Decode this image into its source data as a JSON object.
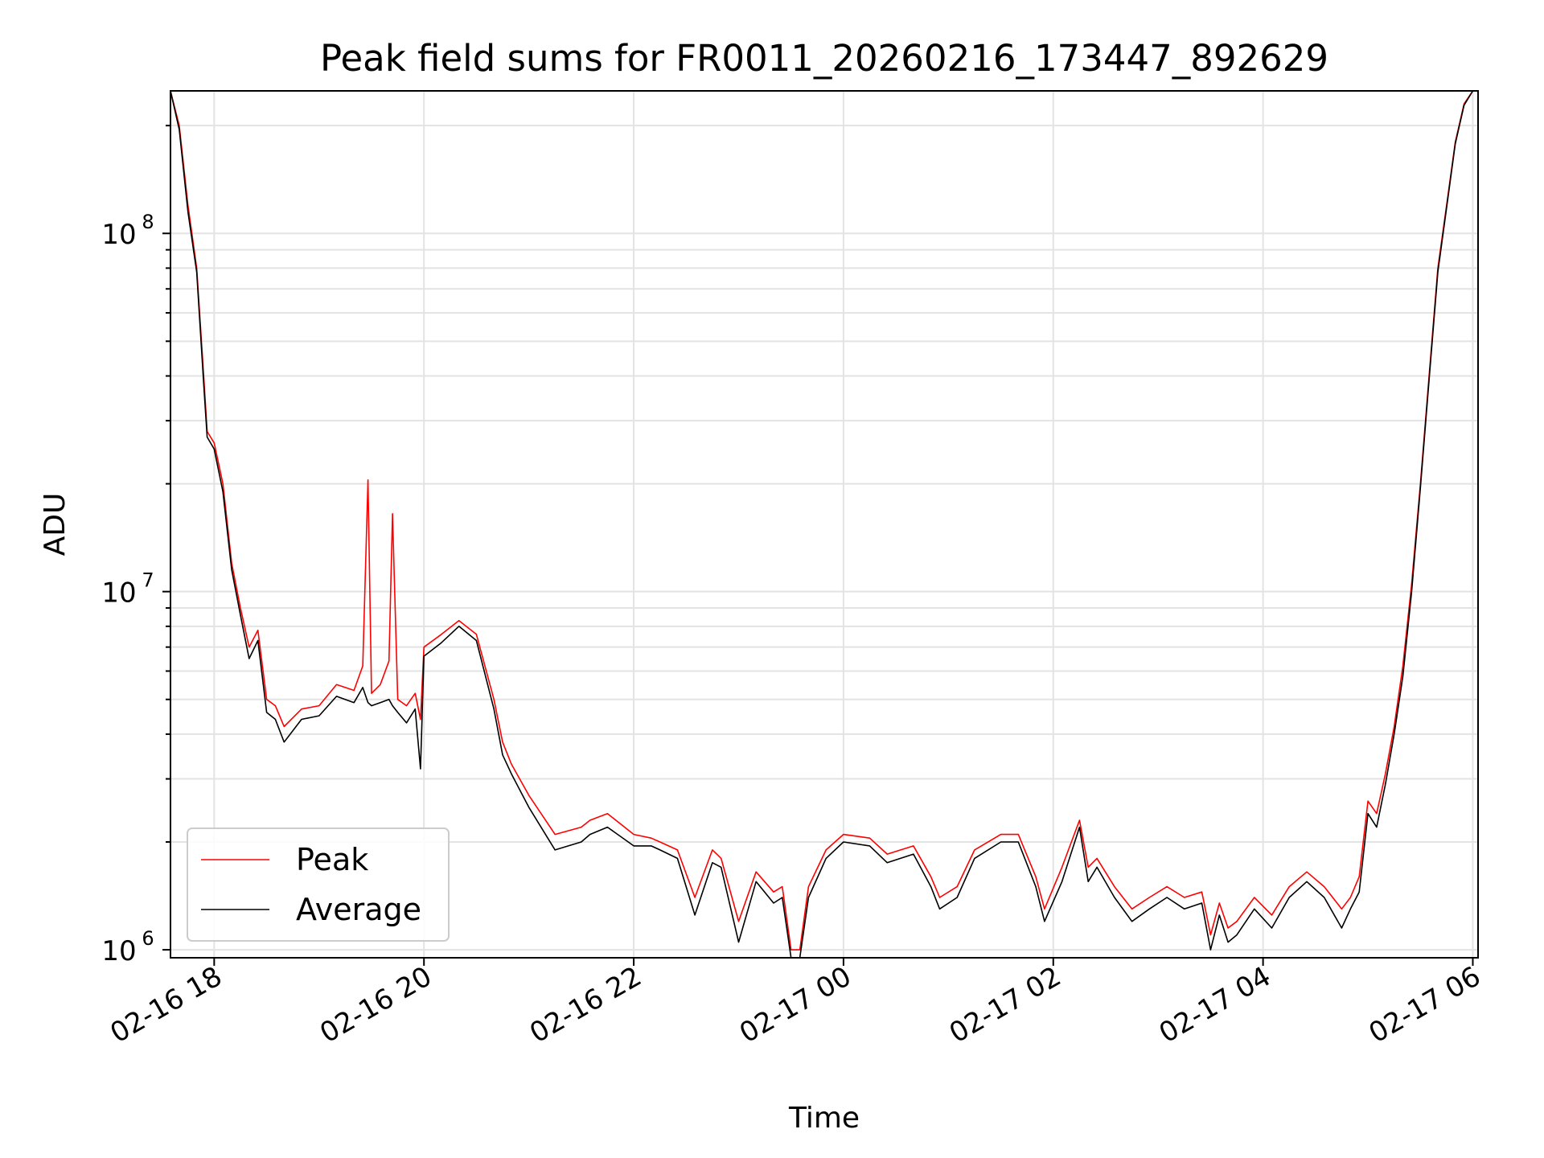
{
  "chart_data": {
    "type": "line",
    "title": "Peak field sums for FR0011_20260216_173447_892629",
    "xlabel": "Time",
    "ylabel": "ADU",
    "yscale": "log",
    "ylim": [
      950000,
      250000000
    ],
    "xlim": [
      "2026-02-16 17:35",
      "2026-02-17 06:03"
    ],
    "grid": "on (major and minor)",
    "legend_location": "lower-left",
    "x_ticks": [
      "2026-02-16 18:00",
      "2026-02-16 20:00",
      "2026-02-16 22:00",
      "2026-02-17 00:00",
      "2026-02-17 02:00",
      "2026-02-17 04:00",
      "2026-02-17 06:00"
    ],
    "x_tick_labels": [
      "02-16 18",
      "02-16 20",
      "02-16 22",
      "02-17 00",
      "02-17 02",
      "02-17 04",
      "02-17 06"
    ],
    "y_tick_labels": [
      {
        "base": "10",
        "exp": "6",
        "value": 1000000
      },
      {
        "base": "10",
        "exp": "7",
        "value": 10000000
      },
      {
        "base": "10",
        "exp": "8",
        "value": 100000000
      }
    ],
    "series": [
      {
        "name": "Peak",
        "color": "#ff0000",
        "x": [
          "2026-02-16 17:35",
          "2026-02-16 17:40",
          "2026-02-16 17:45",
          "2026-02-16 17:50",
          "2026-02-16 17:54",
          "2026-02-16 17:56",
          "2026-02-16 18:00",
          "2026-02-16 18:05",
          "2026-02-16 18:10",
          "2026-02-16 18:15",
          "2026-02-16 18:20",
          "2026-02-16 18:25",
          "2026-02-16 18:30",
          "2026-02-16 18:35",
          "2026-02-16 18:40",
          "2026-02-16 18:50",
          "2026-02-16 19:00",
          "2026-02-16 19:10",
          "2026-02-16 19:20",
          "2026-02-16 19:25",
          "2026-02-16 19:28",
          "2026-02-16 19:30",
          "2026-02-16 19:35",
          "2026-02-16 19:40",
          "2026-02-16 19:42",
          "2026-02-16 19:45",
          "2026-02-16 19:50",
          "2026-02-16 19:55",
          "2026-02-16 19:58",
          "2026-02-16 20:00",
          "2026-02-16 20:10",
          "2026-02-16 20:20",
          "2026-02-16 20:30",
          "2026-02-16 20:40",
          "2026-02-16 20:45",
          "2026-02-16 20:50",
          "2026-02-16 21:00",
          "2026-02-16 21:15",
          "2026-02-16 21:30",
          "2026-02-16 21:35",
          "2026-02-16 21:45",
          "2026-02-16 22:00",
          "2026-02-16 22:10",
          "2026-02-16 22:15",
          "2026-02-16 22:25",
          "2026-02-16 22:35",
          "2026-02-16 22:45",
          "2026-02-16 22:50",
          "2026-02-16 23:00",
          "2026-02-16 23:10",
          "2026-02-16 23:20",
          "2026-02-16 23:25",
          "2026-02-16 23:30",
          "2026-02-16 23:35",
          "2026-02-16 23:40",
          "2026-02-16 23:50",
          "2026-02-17 00:00",
          "2026-02-17 00:15",
          "2026-02-17 00:25",
          "2026-02-17 00:40",
          "2026-02-17 00:50",
          "2026-02-17 00:55",
          "2026-02-17 01:05",
          "2026-02-17 01:15",
          "2026-02-17 01:30",
          "2026-02-17 01:40",
          "2026-02-17 01:50",
          "2026-02-17 01:55",
          "2026-02-17 02:05",
          "2026-02-17 02:15",
          "2026-02-17 02:20",
          "2026-02-17 02:25",
          "2026-02-17 02:35",
          "2026-02-17 02:45",
          "2026-02-17 02:55",
          "2026-02-17 03:05",
          "2026-02-17 03:15",
          "2026-02-17 03:25",
          "2026-02-17 03:30",
          "2026-02-17 03:35",
          "2026-02-17 03:40",
          "2026-02-17 03:45",
          "2026-02-17 03:55",
          "2026-02-17 04:05",
          "2026-02-17 04:15",
          "2026-02-17 04:25",
          "2026-02-17 04:35",
          "2026-02-17 04:45",
          "2026-02-17 04:50",
          "2026-02-17 04:55",
          "2026-02-17 05:00",
          "2026-02-17 05:05",
          "2026-02-17 05:10",
          "2026-02-17 05:15",
          "2026-02-17 05:20",
          "2026-02-17 05:25",
          "2026-02-17 05:30",
          "2026-02-17 05:35",
          "2026-02-17 05:40",
          "2026-02-17 05:45",
          "2026-02-17 05:50",
          "2026-02-17 05:55",
          "2026-02-17 06:00"
        ],
        "y": [
          250000000,
          200000000,
          120000000,
          80000000,
          40000000,
          28000000,
          26000000,
          20000000,
          12000000,
          9000000,
          7000000,
          7800000,
          5000000,
          4800000,
          4200000,
          4700000,
          4800000,
          5500000,
          5300000,
          6200000,
          20500000,
          5200000,
          5500000,
          6400000,
          16500000,
          5000000,
          4800000,
          5200000,
          4400000,
          7000000,
          7600000,
          8300000,
          7600000,
          5000000,
          3800000,
          3300000,
          2700000,
          2100000,
          2200000,
          2300000,
          2400000,
          2100000,
          2050000,
          2000000,
          1900000,
          1400000,
          1900000,
          1800000,
          1200000,
          1650000,
          1450000,
          1500000,
          1000000,
          1000000,
          1500000,
          1900000,
          2100000,
          2050000,
          1850000,
          1950000,
          1600000,
          1400000,
          1500000,
          1900000,
          2100000,
          2100000,
          1600000,
          1300000,
          1700000,
          2300000,
          1700000,
          1800000,
          1500000,
          1300000,
          1400000,
          1500000,
          1400000,
          1450000,
          1100000,
          1350000,
          1150000,
          1200000,
          1400000,
          1250000,
          1500000,
          1650000,
          1500000,
          1300000,
          1400000,
          1600000,
          2600000,
          2400000,
          3100000,
          4200000,
          6200000,
          10500000,
          20000000,
          40000000,
          80000000,
          120000000,
          180000000,
          230000000,
          250000000
        ]
      },
      {
        "name": "Average",
        "color": "#000000",
        "x": [
          "2026-02-16 17:35",
          "2026-02-16 17:40",
          "2026-02-16 17:45",
          "2026-02-16 17:50",
          "2026-02-16 17:54",
          "2026-02-16 17:56",
          "2026-02-16 18:00",
          "2026-02-16 18:05",
          "2026-02-16 18:10",
          "2026-02-16 18:15",
          "2026-02-16 18:20",
          "2026-02-16 18:25",
          "2026-02-16 18:30",
          "2026-02-16 18:35",
          "2026-02-16 18:40",
          "2026-02-16 18:50",
          "2026-02-16 19:00",
          "2026-02-16 19:10",
          "2026-02-16 19:20",
          "2026-02-16 19:25",
          "2026-02-16 19:28",
          "2026-02-16 19:30",
          "2026-02-16 19:35",
          "2026-02-16 19:40",
          "2026-02-16 19:42",
          "2026-02-16 19:45",
          "2026-02-16 19:50",
          "2026-02-16 19:55",
          "2026-02-16 19:58",
          "2026-02-16 20:00",
          "2026-02-16 20:10",
          "2026-02-16 20:20",
          "2026-02-16 20:30",
          "2026-02-16 20:40",
          "2026-02-16 20:45",
          "2026-02-16 20:50",
          "2026-02-16 21:00",
          "2026-02-16 21:15",
          "2026-02-16 21:30",
          "2026-02-16 21:35",
          "2026-02-16 21:45",
          "2026-02-16 22:00",
          "2026-02-16 22:10",
          "2026-02-16 22:15",
          "2026-02-16 22:25",
          "2026-02-16 22:35",
          "2026-02-16 22:45",
          "2026-02-16 22:50",
          "2026-02-16 23:00",
          "2026-02-16 23:10",
          "2026-02-16 23:20",
          "2026-02-16 23:25",
          "2026-02-16 23:30",
          "2026-02-16 23:35",
          "2026-02-16 23:40",
          "2026-02-16 23:50",
          "2026-02-17 00:00",
          "2026-02-17 00:15",
          "2026-02-17 00:25",
          "2026-02-17 00:40",
          "2026-02-17 00:50",
          "2026-02-17 00:55",
          "2026-02-17 01:05",
          "2026-02-17 01:15",
          "2026-02-17 01:30",
          "2026-02-17 01:40",
          "2026-02-17 01:50",
          "2026-02-17 01:55",
          "2026-02-17 02:05",
          "2026-02-17 02:15",
          "2026-02-17 02:20",
          "2026-02-17 02:25",
          "2026-02-17 02:35",
          "2026-02-17 02:45",
          "2026-02-17 02:55",
          "2026-02-17 03:05",
          "2026-02-17 03:15",
          "2026-02-17 03:25",
          "2026-02-17 03:30",
          "2026-02-17 03:35",
          "2026-02-17 03:40",
          "2026-02-17 03:45",
          "2026-02-17 03:55",
          "2026-02-17 04:05",
          "2026-02-17 04:15",
          "2026-02-17 04:25",
          "2026-02-17 04:35",
          "2026-02-17 04:45",
          "2026-02-17 04:50",
          "2026-02-17 04:55",
          "2026-02-17 05:00",
          "2026-02-17 05:05",
          "2026-02-17 05:10",
          "2026-02-17 05:15",
          "2026-02-17 05:20",
          "2026-02-17 05:25",
          "2026-02-17 05:30",
          "2026-02-17 05:35",
          "2026-02-17 05:40",
          "2026-02-17 05:45",
          "2026-02-17 05:50",
          "2026-02-17 05:55",
          "2026-02-17 06:00"
        ],
        "y": [
          250000000,
          195000000,
          115000000,
          78000000,
          38000000,
          27000000,
          25000000,
          19000000,
          11500000,
          8600000,
          6500000,
          7300000,
          4600000,
          4400000,
          3800000,
          4400000,
          4500000,
          5100000,
          4900000,
          5400000,
          4900000,
          4800000,
          4900000,
          5000000,
          4800000,
          4600000,
          4300000,
          4700000,
          3200000,
          6600000,
          7200000,
          8000000,
          7300000,
          4700000,
          3500000,
          3100000,
          2500000,
          1900000,
          2000000,
          2100000,
          2200000,
          1950000,
          1950000,
          1900000,
          1800000,
          1250000,
          1750000,
          1700000,
          1050000,
          1550000,
          1350000,
          1400000,
          950000,
          950000,
          1400000,
          1800000,
          2000000,
          1950000,
          1750000,
          1850000,
          1500000,
          1300000,
          1400000,
          1800000,
          2000000,
          2000000,
          1500000,
          1200000,
          1550000,
          2200000,
          1550000,
          1700000,
          1400000,
          1200000,
          1300000,
          1400000,
          1300000,
          1350000,
          1000000,
          1250000,
          1050000,
          1100000,
          1300000,
          1150000,
          1400000,
          1550000,
          1400000,
          1150000,
          1300000,
          1450000,
          2400000,
          2200000,
          2900000,
          4000000,
          5800000,
          10000000,
          19500000,
          39000000,
          78000000,
          118000000,
          178000000,
          228000000,
          250000000
        ]
      }
    ]
  }
}
